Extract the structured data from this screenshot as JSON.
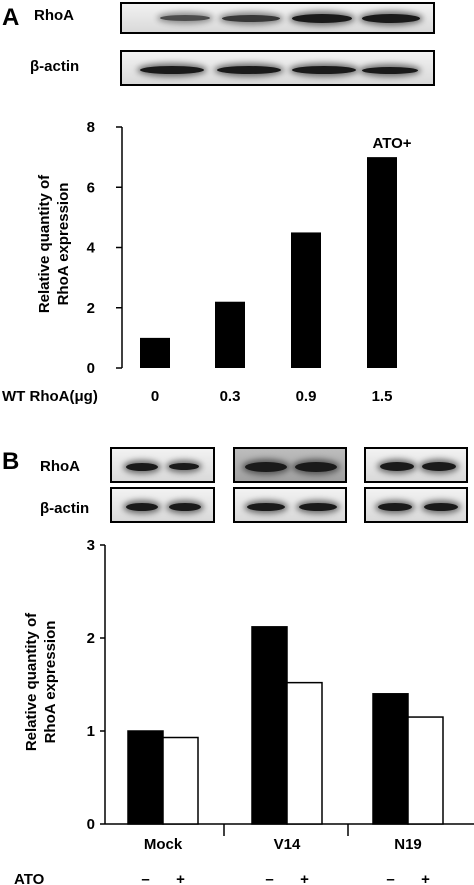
{
  "panel_a": {
    "letter": "A",
    "blots": {
      "rhoa_label": "RhoA",
      "actin_label": "β-actin"
    }
  },
  "panel_b": {
    "letter": "B",
    "blots": {
      "rhoa_label": "RhoA",
      "actin_label": "β-actin"
    }
  },
  "chart_data": [
    {
      "type": "bar",
      "ylabel": "Relative quantity of\nRhoA expression",
      "xlabel": "WT RhoA(μg)",
      "annotation": "ATO+",
      "categories": [
        "0",
        "0.3",
        "0.9",
        "1.5"
      ],
      "values": [
        1.0,
        2.2,
        4.5,
        7.0
      ],
      "ylim": [
        0,
        8
      ],
      "yticks": [
        0,
        2,
        4,
        6,
        8
      ],
      "bar_color": "#000000",
      "grid": false
    },
    {
      "type": "bar",
      "ylabel": "Relative quantity of\nRhoA expression",
      "xlabel": "ATO",
      "categories": [
        "Mock",
        "V14",
        "N19"
      ],
      "subcategories": [
        "–",
        "+"
      ],
      "series": [
        {
          "name": "–",
          "values": [
            1.0,
            2.12,
            1.4
          ],
          "color": "#000000"
        },
        {
          "name": "+",
          "values": [
            0.93,
            1.52,
            1.15
          ],
          "color": "#ffffff"
        }
      ],
      "ylim": [
        0,
        3
      ],
      "yticks": [
        0,
        1,
        2,
        3
      ],
      "grid": false
    }
  ]
}
